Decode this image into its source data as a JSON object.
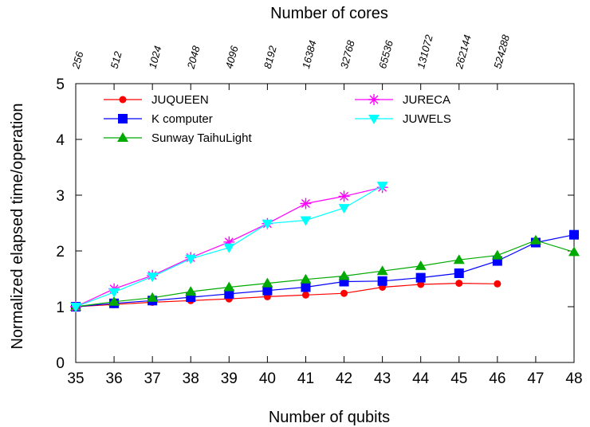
{
  "chart_data": {
    "type": "line",
    "xlabel": "Number of qubits",
    "ylabel": "Normalized elapsed time/operation",
    "top_axis_label": "Number of  cores",
    "xlim": [
      35,
      48
    ],
    "ylim": [
      0,
      5
    ],
    "x_ticks": [
      35,
      36,
      37,
      38,
      39,
      40,
      41,
      42,
      43,
      44,
      45,
      46,
      47,
      48
    ],
    "y_ticks": [
      0,
      1,
      2,
      3,
      4,
      5
    ],
    "top_ticks": [
      {
        "x": 35,
        "label": "256"
      },
      {
        "x": 36,
        "label": "512"
      },
      {
        "x": 37,
        "label": "1024"
      },
      {
        "x": 38,
        "label": "2048"
      },
      {
        "x": 39,
        "label": "4096"
      },
      {
        "x": 40,
        "label": "8192"
      },
      {
        "x": 41,
        "label": "16384"
      },
      {
        "x": 42,
        "label": "32768"
      },
      {
        "x": 43,
        "label": "65536"
      },
      {
        "x": 44,
        "label": "131072"
      },
      {
        "x": 45,
        "label": "262144"
      },
      {
        "x": 46,
        "label": "524288"
      }
    ],
    "grid": false,
    "legend_position": "top-left (two columns)",
    "series": [
      {
        "name": "JUQUEEN",
        "color": "#ff0000",
        "marker": "circle",
        "x": [
          35,
          36,
          37,
          38,
          39,
          40,
          41,
          42,
          43,
          44,
          45,
          46
        ],
        "y": [
          1.0,
          1.04,
          1.08,
          1.11,
          1.14,
          1.18,
          1.21,
          1.24,
          1.35,
          1.4,
          1.42,
          1.41
        ]
      },
      {
        "name": "K computer",
        "color": "#0000ff",
        "marker": "square",
        "x": [
          35,
          36,
          37,
          38,
          39,
          40,
          41,
          42,
          43,
          44,
          45,
          46,
          47,
          48
        ],
        "y": [
          1.0,
          1.06,
          1.11,
          1.17,
          1.23,
          1.29,
          1.35,
          1.45,
          1.46,
          1.52,
          1.6,
          1.82,
          2.15,
          2.29
        ]
      },
      {
        "name": "Sunway TaihuLight",
        "color": "#00aa00",
        "marker": "triangle-up",
        "x": [
          35,
          36,
          37,
          38,
          39,
          40,
          41,
          42,
          43,
          44,
          45,
          46,
          47,
          48
        ],
        "y": [
          1.0,
          1.09,
          1.16,
          1.27,
          1.35,
          1.42,
          1.49,
          1.55,
          1.64,
          1.73,
          1.84,
          1.92,
          2.19,
          1.98
        ]
      },
      {
        "name": "JURECA",
        "color": "#ff00ff",
        "marker": "asterisk",
        "x": [
          35,
          36,
          37,
          38,
          39,
          40,
          41,
          42,
          43
        ],
        "y": [
          1.0,
          1.32,
          1.56,
          1.88,
          2.16,
          2.49,
          2.85,
          2.98,
          3.14
        ]
      },
      {
        "name": "JUWELS",
        "color": "#00ffff",
        "marker": "triangle-down",
        "x": [
          35,
          36,
          37,
          38,
          39,
          40,
          41,
          42,
          43
        ],
        "y": [
          1.0,
          1.26,
          1.54,
          1.86,
          2.06,
          2.49,
          2.55,
          2.77,
          3.17
        ]
      }
    ]
  }
}
